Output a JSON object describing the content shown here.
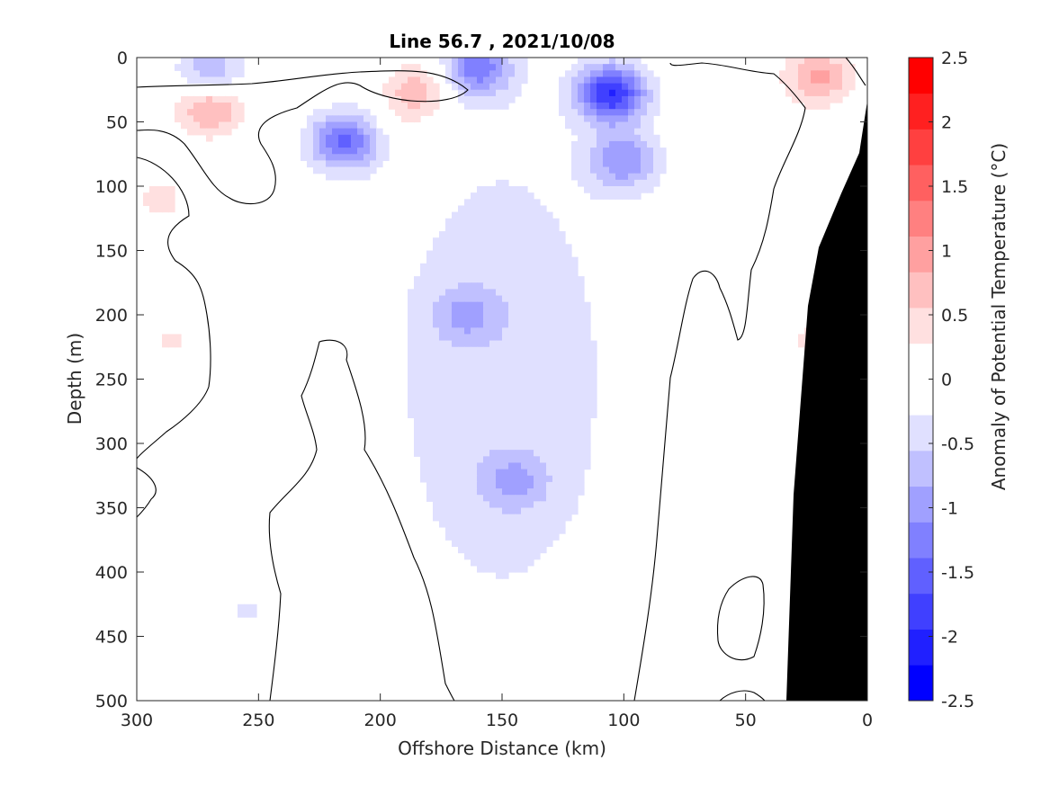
{
  "chart_data": {
    "type": "heatmap",
    "subtype": "filled-contour",
    "title": "Line 56.7 , 2021/10/08",
    "xlabel": "Offshore Distance (km)",
    "ylabel": "Depth (m)",
    "colorbar_label": "Anomaly of Potential Temperature (°C)",
    "xlim": [
      300,
      0
    ],
    "ylim": [
      500,
      0
    ],
    "x_reversed": true,
    "y_reversed": true,
    "x_ticks": [
      "300",
      "250",
      "200",
      "150",
      "100",
      "50",
      "0"
    ],
    "y_ticks": [
      "0",
      "50",
      "100",
      "150",
      "200",
      "250",
      "300",
      "350",
      "400",
      "450",
      "500"
    ],
    "colorbar_ticks": [
      "2.5",
      "2",
      "1.5",
      "1",
      "0.5",
      "0",
      "-0.5",
      "-1",
      "-1.5",
      "-2",
      "-2.5"
    ],
    "clim": [
      -2.5,
      2.5
    ],
    "contour_step": 0.25,
    "colormap": [
      "#0000ff",
      "#2020ff",
      "#4040ff",
      "#6060ff",
      "#8080ff",
      "#a0a0ff",
      "#c0c0ff",
      "#e0e0ff",
      "#ffffff",
      "#ffffff",
      "#ffe0e0",
      "#ffc0c0",
      "#ffa0a0",
      "#ff8080",
      "#ff6060",
      "#ff4040",
      "#ff2020",
      "#ff0000"
    ],
    "zero_contour_color": "#000000",
    "bathymetry_color": "#000000",
    "features": [
      {
        "x": 270,
        "y": 12,
        "value": -0.9
      },
      {
        "x": 160,
        "y": 8,
        "value": -1.2
      },
      {
        "x": 270,
        "y": 38,
        "value": 1.0
      },
      {
        "x": 190,
        "y": 50,
        "value": 0.2
      },
      {
        "x": 185,
        "y": 25,
        "value": 0.8
      },
      {
        "x": 215,
        "y": 65,
        "value": -1.4
      },
      {
        "x": 105,
        "y": 28,
        "value": -1.9
      },
      {
        "x": 100,
        "y": 80,
        "value": -1.0
      },
      {
        "x": 20,
        "y": 15,
        "value": 0.9
      },
      {
        "x": 290,
        "y": 110,
        "value": 0.35
      },
      {
        "x": 285,
        "y": 220,
        "value": 0.3
      },
      {
        "x": 165,
        "y": 200,
        "value": -0.6
      },
      {
        "x": 145,
        "y": 330,
        "value": -0.6
      },
      {
        "x": 255,
        "y": 430,
        "value": -0.3
      },
      {
        "x": 195,
        "y": 450,
        "value": 0.3
      },
      {
        "x": 20,
        "y": 220,
        "value": 0.4
      },
      {
        "x": 70,
        "y": 405,
        "value": 0.25
      }
    ]
  }
}
